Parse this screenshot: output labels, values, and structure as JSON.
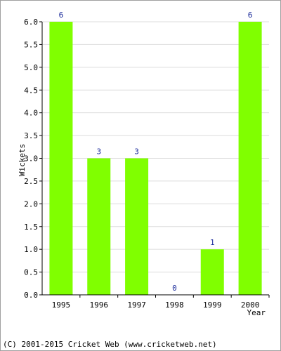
{
  "chart_data": {
    "type": "bar",
    "categories": [
      "1995",
      "1996",
      "1997",
      "1998",
      "1999",
      "2000"
    ],
    "values": [
      6,
      3,
      3,
      0,
      1,
      6
    ],
    "data_labels": [
      "6",
      "3",
      "3",
      "0",
      "1",
      "6"
    ],
    "xlabel": "Year",
    "ylabel": "Wickets",
    "ylim": [
      0,
      6
    ],
    "yticks": [
      "0.0",
      "0.5",
      "1.0",
      "1.5",
      "2.0",
      "2.5",
      "3.0",
      "3.5",
      "4.0",
      "4.5",
      "5.0",
      "5.5",
      "6.0"
    ],
    "grid": true,
    "bar_color": "#80ff00",
    "label_color": "#1a2a9a"
  },
  "footer": {
    "copyright": "(C) 2001-2015 Cricket Web (www.cricketweb.net)"
  }
}
